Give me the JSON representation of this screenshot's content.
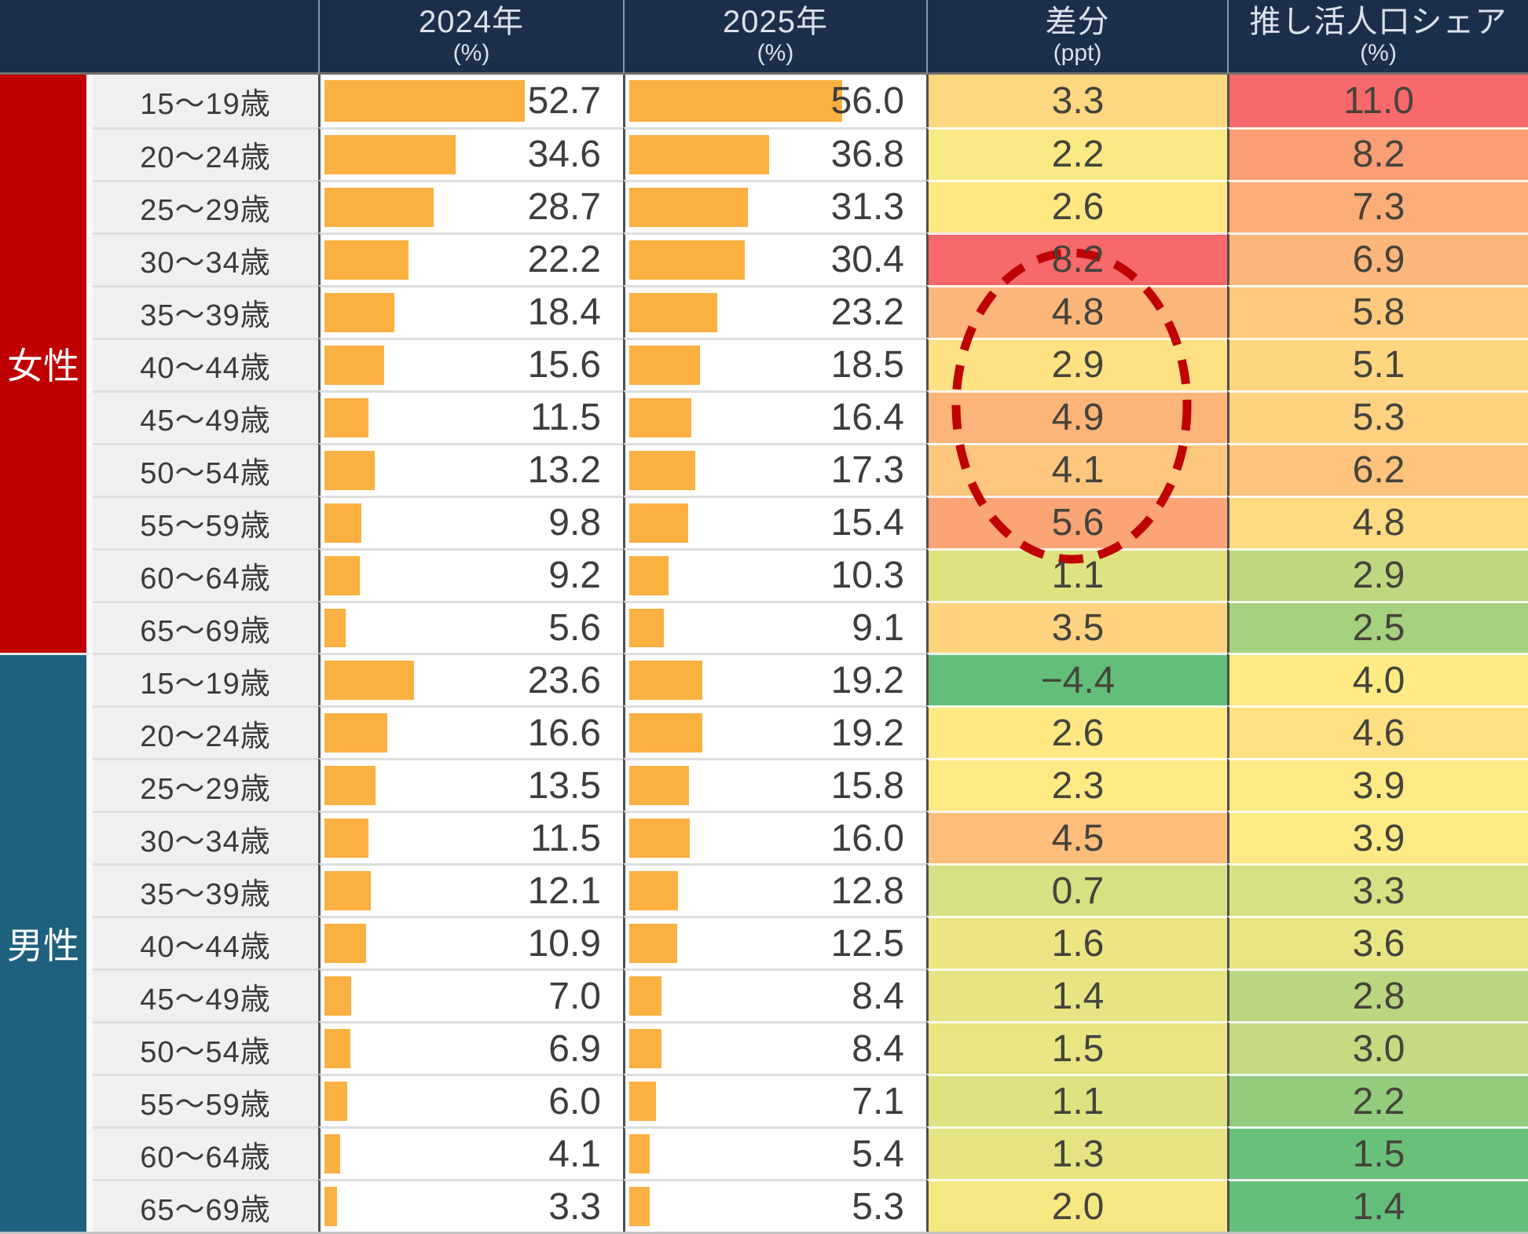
{
  "chart_data": {
    "type": "table",
    "title": "",
    "columns": [
      {
        "label": "2024年",
        "unit": "(%)",
        "kind": "bar"
      },
      {
        "label": "2025年",
        "unit": "(%)",
        "kind": "bar"
      },
      {
        "label": "差分",
        "unit": "(ppt)",
        "kind": "heatmap"
      },
      {
        "label": "推し活人口シェア",
        "unit": "(%)",
        "kind": "heatmap"
      }
    ],
    "bar_axis": {
      "min": 0,
      "max": 60
    },
    "heatmap_scale": {
      "low": "#63BE7B",
      "mid": "#FFEB84",
      "high": "#F8696B",
      "midpoint": "median"
    },
    "groups": [
      {
        "gender": "女性",
        "color": "#C00000",
        "rows": [
          {
            "age": "15～19歳",
            "values": [
              52.7,
              56.0,
              3.3,
              11.0
            ]
          },
          {
            "age": "20～24歳",
            "values": [
              34.6,
              36.8,
              2.2,
              8.2
            ]
          },
          {
            "age": "25～29歳",
            "values": [
              28.7,
              31.3,
              2.6,
              7.3
            ]
          },
          {
            "age": "30～34歳",
            "values": [
              22.2,
              30.4,
              8.2,
              6.9
            ]
          },
          {
            "age": "35～39歳",
            "values": [
              18.4,
              23.2,
              4.8,
              5.8
            ]
          },
          {
            "age": "40～44歳",
            "values": [
              15.6,
              18.5,
              2.9,
              5.1
            ]
          },
          {
            "age": "45～49歳",
            "values": [
              11.5,
              16.4,
              4.9,
              5.3
            ]
          },
          {
            "age": "50～54歳",
            "values": [
              13.2,
              17.3,
              4.1,
              6.2
            ]
          },
          {
            "age": "55～59歳",
            "values": [
              9.8,
              15.4,
              5.6,
              4.8
            ]
          },
          {
            "age": "60～64歳",
            "values": [
              9.2,
              10.3,
              1.1,
              2.9
            ]
          },
          {
            "age": "65～69歳",
            "values": [
              5.6,
              9.1,
              3.5,
              2.5
            ]
          }
        ]
      },
      {
        "gender": "男性",
        "color": "#20607F",
        "rows": [
          {
            "age": "15～19歳",
            "values": [
              23.6,
              19.2,
              -4.4,
              4.0
            ]
          },
          {
            "age": "20～24歳",
            "values": [
              16.6,
              19.2,
              2.6,
              4.6
            ]
          },
          {
            "age": "25～29歳",
            "values": [
              13.5,
              15.8,
              2.3,
              3.9
            ]
          },
          {
            "age": "30～34歳",
            "values": [
              11.5,
              16.0,
              4.5,
              3.9
            ]
          },
          {
            "age": "35～39歳",
            "values": [
              12.1,
              12.8,
              0.7,
              3.3
            ]
          },
          {
            "age": "40～44歳",
            "values": [
              10.9,
              12.5,
              1.6,
              3.6
            ]
          },
          {
            "age": "45～49歳",
            "values": [
              7.0,
              8.4,
              1.4,
              2.8
            ]
          },
          {
            "age": "50～54歳",
            "values": [
              6.9,
              8.4,
              1.5,
              3.0
            ]
          },
          {
            "age": "55～59歳",
            "values": [
              6.0,
              7.1,
              1.1,
              2.2
            ]
          },
          {
            "age": "60～64歳",
            "values": [
              4.1,
              5.4,
              1.3,
              1.5
            ]
          },
          {
            "age": "65～69歳",
            "values": [
              3.3,
              5.3,
              2.0,
              1.4
            ]
          }
        ]
      }
    ],
    "annotation": {
      "shape": "dashed-ellipse",
      "color": "#C00000",
      "target": "女性 30～59歳 の差分値"
    }
  },
  "colors": {
    "header_bg": "#1C2F4A",
    "header_text": "#DCE2EB",
    "bar": "#FBB042",
    "age_bg": "#F0F0F0",
    "female": "#C00000",
    "male": "#20607F"
  }
}
